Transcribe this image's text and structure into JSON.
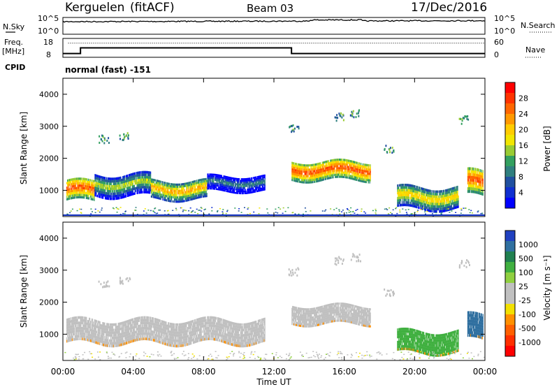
{
  "header": {
    "station": "Kerguelen",
    "algorithm": "(fitACF)",
    "beam": "Beam 03",
    "date": "17/Dec/2016"
  },
  "noise_panel": {
    "left_label": "N.Sky",
    "right_label": "N.Search",
    "tick_hi": "10^5",
    "tick_lo": "10^0"
  },
  "freq_panel": {
    "left_label_1": "Freq.",
    "left_label_2": "[MHz]",
    "left_tick_hi": "18",
    "left_tick_lo": "8",
    "right_label": "Nave",
    "right_tick_hi": "60",
    "right_tick_lo": "0",
    "freq_steps": [
      {
        "t": 0,
        "v": 10.0
      },
      {
        "t": 1.0,
        "v": 13.0
      },
      {
        "t": 13.0,
        "v": 10.0
      },
      {
        "t": 24.0,
        "v": 10.0
      }
    ],
    "nave_level": 45
  },
  "cpid": {
    "label": "CPID",
    "text": "normal (fast) -151"
  },
  "power_panel": {
    "ylabel": "Slant Range [km]",
    "cbar_label": "Power [dB]",
    "cbar_ticks": [
      "28",
      "24",
      "20",
      "16",
      "12",
      "8",
      "4"
    ],
    "cbar_colors": [
      "#ff0000",
      "#ff3300",
      "#ff6600",
      "#ff9900",
      "#ffcc00",
      "#f2e600",
      "#99cc33",
      "#33a060",
      "#2f7f7f",
      "#2050a0",
      "#1030d0",
      "#0000ff"
    ]
  },
  "velocity_panel": {
    "ylabel": "Slant Range [km]",
    "cbar_label": "Velocity [m s⁻¹]",
    "cbar_ticks": [
      "1000",
      "500",
      "100",
      "25",
      "-25",
      "-100",
      "-500",
      "-1000"
    ],
    "cbar_colors": [
      "#2040c0",
      "#3070a0",
      "#208050",
      "#40b040",
      "#90d040",
      "#c0c0c0",
      "#c0c0c0",
      "#f2e000",
      "#ff9000",
      "#ff6000",
      "#ff3000",
      "#ff0000"
    ]
  },
  "axes": {
    "y_ticks": [
      "1000",
      "2000",
      "3000",
      "4000"
    ],
    "x_ticks": [
      "00:00",
      "04:00",
      "08:00",
      "12:00",
      "16:00",
      "20:00",
      "00:00"
    ],
    "xlabel": "Time UT"
  },
  "chart_data": [
    {
      "type": "line",
      "name": "noise",
      "x_unit": "hours UT",
      "x": [
        0,
        4,
        8,
        12,
        16,
        20,
        24
      ],
      "ylim": [
        1,
        100000
      ],
      "yscale": "log"
    },
    {
      "type": "line",
      "name": "frequency",
      "x": [
        0,
        1,
        13,
        24
      ],
      "values": [
        10,
        13,
        10,
        10
      ],
      "ylim": [
        8,
        18
      ]
    },
    {
      "type": "heatmap",
      "name": "power",
      "xlim": [
        0,
        24
      ],
      "ylim": [
        180,
        4500
      ],
      "zlim": [
        0,
        30
      ],
      "regions": [
        {
          "t0": 0.2,
          "t1": 1.8,
          "r0": 650,
          "r1": 1300,
          "z": 27
        },
        {
          "t0": 1.8,
          "t1": 5.0,
          "r0": 800,
          "r1": 1500,
          "z": 16
        },
        {
          "t0": 5.0,
          "t1": 8.2,
          "r0": 700,
          "r1": 1300,
          "z": 22
        },
        {
          "t0": 8.2,
          "t1": 11.5,
          "r0": 950,
          "r1": 1450,
          "z": 10
        },
        {
          "t0": 13.0,
          "t1": 17.5,
          "r0": 1300,
          "r1": 1900,
          "z": 27
        },
        {
          "t0": 19.0,
          "t1": 22.5,
          "r0": 400,
          "r1": 1100,
          "z": 20
        },
        {
          "t0": 23.0,
          "t1": 23.9,
          "r0": 800,
          "r1": 1600,
          "z": 27
        }
      ]
    },
    {
      "type": "heatmap",
      "name": "velocity",
      "xlim": [
        0,
        24
      ],
      "ylim": [
        180,
        4500
      ],
      "zlim": [
        -1000,
        1000
      ],
      "regions": [
        {
          "t0": 0.2,
          "t1": 11.5,
          "r0": 700,
          "r1": 1450,
          "z": 0
        },
        {
          "t0": 13.0,
          "t1": 17.5,
          "r0": 1300,
          "r1": 1900,
          "z": 0
        },
        {
          "t0": 19.0,
          "t1": 22.5,
          "r0": 400,
          "r1": 1100,
          "z": 100
        },
        {
          "t0": 23.0,
          "t1": 23.9,
          "r0": 800,
          "r1": 1600,
          "z": 500
        }
      ]
    }
  ]
}
